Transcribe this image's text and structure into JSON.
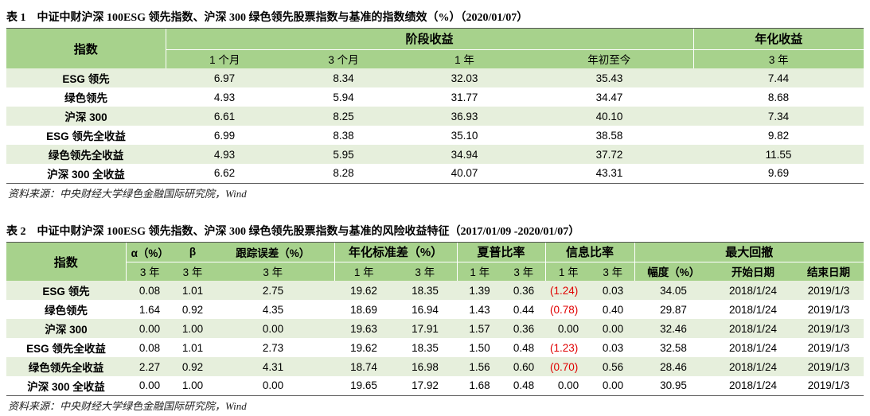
{
  "table1": {
    "caption": "表 1　中证中财沪深 100ESG 领先指数、沪深 300 绿色领先股票指数与基准的指数绩效（%）（2020/01/07）",
    "header": {
      "index": "指数",
      "group_period": "阶段收益",
      "group_annual": "年化收益",
      "cols": [
        "1 个月",
        "3 个月",
        "1 年",
        "年初至今",
        "3 年"
      ]
    },
    "rows": [
      {
        "name": "ESG 领先",
        "values": [
          "6.97",
          "8.34",
          "32.03",
          "35.43",
          "7.44"
        ]
      },
      {
        "name": "绿色领先",
        "values": [
          "4.93",
          "5.94",
          "31.77",
          "34.47",
          "8.68"
        ]
      },
      {
        "name": "沪深 300",
        "values": [
          "6.61",
          "8.25",
          "36.93",
          "40.10",
          "7.34"
        ]
      },
      {
        "name": "ESG 领先全收益",
        "values": [
          "6.99",
          "8.38",
          "35.10",
          "38.58",
          "9.82"
        ]
      },
      {
        "name": "绿色领先全收益",
        "values": [
          "4.93",
          "5.95",
          "34.94",
          "37.72",
          "11.55"
        ]
      },
      {
        "name": "沪深 300 全收益",
        "values": [
          "6.62",
          "8.28",
          "40.07",
          "43.31",
          "9.69"
        ]
      }
    ],
    "source": "资料来源：中央财经大学绿色金融国际研究院，Wind"
  },
  "table2": {
    "caption": "表 2　中证中财沪深 100ESG 领先指数、沪深 300 绿色领先股票指数与基准的风险收益特征（2017/01/09 -2020/01/07）",
    "header": {
      "index": "指数",
      "alpha": "α（%）",
      "beta": "β",
      "tracking": "跟踪误差（%）",
      "stdev": "年化标准差（%）",
      "sharpe": "夏普比率",
      "info": "信息比率",
      "drawdown": "最大回撤",
      "sub": [
        "3 年",
        "3 年",
        "3 年",
        "1 年",
        "3 年",
        "1 年",
        "3 年",
        "1 年",
        "3 年",
        "幅度（%）",
        "开始日期",
        "结束日期"
      ]
    },
    "rows": [
      {
        "name": "ESG 领先",
        "values": [
          "0.08",
          "1.01",
          "2.75",
          "19.62",
          "18.35",
          "1.39",
          "0.36",
          "(1.24)",
          "0.03",
          "34.05",
          "2018/1/24",
          "2019/1/3"
        ]
      },
      {
        "name": "绿色领先",
        "values": [
          "1.64",
          "0.92",
          "4.35",
          "18.69",
          "16.94",
          "1.43",
          "0.44",
          "(0.78)",
          "0.40",
          "29.87",
          "2018/1/24",
          "2019/1/3"
        ]
      },
      {
        "name": "沪深 300",
        "values": [
          "0.00",
          "1.00",
          "0.00",
          "19.63",
          "17.91",
          "1.57",
          "0.36",
          "0.00",
          "0.00",
          "32.46",
          "2018/1/24",
          "2019/1/3"
        ]
      },
      {
        "name": "ESG 领先全收益",
        "values": [
          "0.08",
          "1.01",
          "2.73",
          "19.62",
          "18.35",
          "1.50",
          "0.48",
          "(1.23)",
          "0.03",
          "32.58",
          "2018/1/24",
          "2019/1/3"
        ]
      },
      {
        "name": "绿色领先全收益",
        "values": [
          "2.27",
          "0.92",
          "4.31",
          "18.74",
          "16.98",
          "1.56",
          "0.60",
          "(0.70)",
          "0.56",
          "28.46",
          "2018/1/24",
          "2019/1/3"
        ]
      },
      {
        "name": "沪深 300 全收益",
        "values": [
          "0.00",
          "1.00",
          "0.00",
          "19.65",
          "17.92",
          "1.68",
          "0.48",
          "0.00",
          "0.00",
          "30.95",
          "2018/1/24",
          "2019/1/3"
        ]
      }
    ],
    "negative_color": "#e00000",
    "source": "资料来源：中央财经大学绿色金融国际研究院，Wind"
  },
  "colors": {
    "header_green": "#a7d28c",
    "row_stripe": "#e6efdc"
  }
}
